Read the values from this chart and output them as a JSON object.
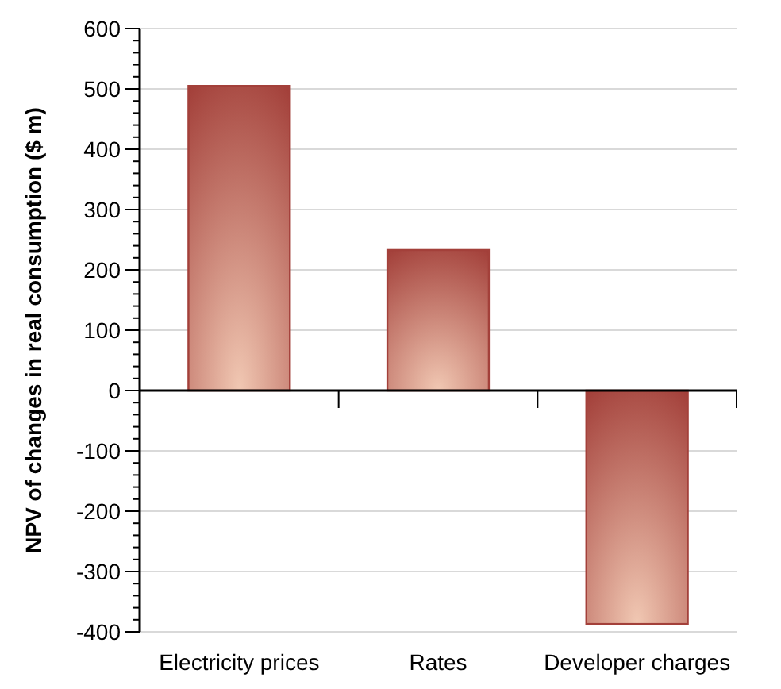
{
  "chart_data": {
    "type": "bar",
    "ylabel": "NPV of changes in real consumption ($ m)",
    "categories": [
      "Electricity prices",
      "Rates",
      "Developer charges"
    ],
    "values": [
      505,
      233,
      -387
    ],
    "color": "#a3403a",
    "ylim": [
      -400,
      600
    ],
    "yticks": [
      -400,
      -300,
      -200,
      -100,
      0,
      100,
      200,
      300,
      400,
      500,
      600
    ],
    "grid": "y"
  }
}
